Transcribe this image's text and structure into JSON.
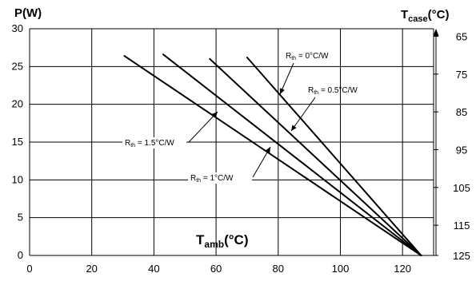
{
  "chart_data": {
    "type": "line",
    "x": {
      "label": "T",
      "label_sub": "amb",
      "label_suffix": "(°C)",
      "ticks": [
        0,
        20,
        40,
        60,
        80,
        100,
        120
      ],
      "range": [
        0,
        130
      ]
    },
    "y_left": {
      "label": "P(W)",
      "ticks": [
        0,
        5,
        10,
        15,
        20,
        25,
        30
      ],
      "range": [
        0,
        30
      ]
    },
    "y_right": {
      "label": "T",
      "label_sub": "case",
      "label_suffix": "(°C)",
      "ticks": [
        {
          "label": "65",
          "at": 29
        },
        {
          "label": "75",
          "at": 24
        },
        {
          "label": "85",
          "at": 19
        },
        {
          "label": "95",
          "at": 14
        },
        {
          "label": "105",
          "at": 9
        },
        {
          "label": "115",
          "at": 4
        },
        {
          "label": "125",
          "at": 0
        }
      ]
    },
    "grid": true,
    "series": [
      {
        "id": "rth-0",
        "points": [
          [
            70,
            26.2
          ],
          [
            126,
            0
          ]
        ],
        "annotation": {
          "prefix": "R",
          "sub": "th",
          "value": " = 0°C/W"
        }
      },
      {
        "id": "rth-0-5",
        "points": [
          [
            58,
            26.0
          ],
          [
            126,
            0
          ]
        ],
        "annotation": {
          "prefix": "R",
          "sub": "th",
          "value": " = 0.5°C/W"
        }
      },
      {
        "id": "rth-1",
        "points": [
          [
            43,
            26.6
          ],
          [
            126,
            0
          ]
        ],
        "annotation": {
          "prefix": "R",
          "sub": "th",
          "value": " = 1°C/W"
        }
      },
      {
        "id": "rth-1-5",
        "points": [
          [
            30.5,
            26.4
          ],
          [
            126,
            0
          ]
        ],
        "annotation": {
          "prefix": "R",
          "sub": "th",
          "value": " = 1.5°C/W"
        }
      }
    ]
  }
}
